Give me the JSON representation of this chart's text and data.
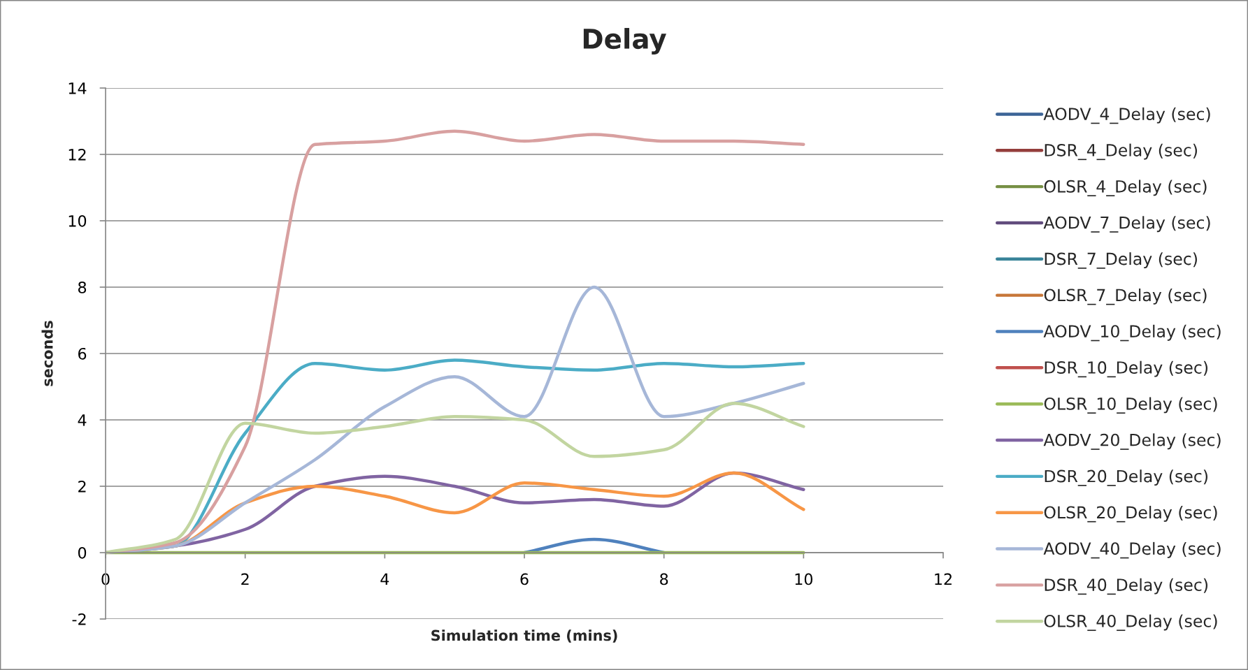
{
  "chart_data": {
    "type": "line",
    "title": "Delay",
    "xlabel": "Simulation time (mins)",
    "ylabel": "seconds",
    "x": [
      0,
      1,
      2,
      3,
      4,
      5,
      6,
      7,
      8,
      9,
      10
    ],
    "series": [
      {
        "name": "AODV_4_Delay (sec)",
        "color": "#3c6496",
        "values": [
          null,
          null,
          null,
          null,
          null,
          null,
          null,
          null,
          null,
          null,
          null
        ]
      },
      {
        "name": "DSR_4_Delay (sec)",
        "color": "#943e3c",
        "values": [
          null,
          null,
          null,
          null,
          null,
          null,
          null,
          null,
          null,
          null,
          null
        ]
      },
      {
        "name": "OLSR_4_Delay (sec)",
        "color": "#768f44",
        "values": [
          null,
          null,
          null,
          null,
          null,
          null,
          null,
          null,
          null,
          null,
          null
        ]
      },
      {
        "name": "AODV_7_Delay (sec)",
        "color": "#614c7d",
        "values": [
          null,
          null,
          null,
          null,
          null,
          null,
          null,
          null,
          null,
          null,
          null
        ]
      },
      {
        "name": "DSR_7_Delay (sec)",
        "color": "#398499",
        "values": [
          null,
          null,
          null,
          null,
          null,
          null,
          null,
          null,
          null,
          null,
          null
        ]
      },
      {
        "name": "OLSR_7_Delay (sec)",
        "color": "#c77638",
        "values": [
          null,
          null,
          null,
          null,
          null,
          null,
          null,
          null,
          null,
          null,
          null
        ]
      },
      {
        "name": "AODV_10_Delay (sec)",
        "color": "#4f81bd",
        "values": [
          null,
          null,
          null,
          null,
          null,
          null,
          0,
          0.4,
          0,
          null,
          null
        ]
      },
      {
        "name": "DSR_10_Delay (sec)",
        "color": "#c0504d",
        "values": [
          null,
          null,
          null,
          null,
          null,
          null,
          null,
          null,
          null,
          null,
          null
        ]
      },
      {
        "name": "OLSR_10_Delay (sec)",
        "color": "#9bbb59",
        "values": [
          0,
          0,
          0,
          0,
          0,
          0,
          0,
          0,
          0,
          0,
          0
        ]
      },
      {
        "name": "AODV_20_Delay (sec)",
        "color": "#8064a2",
        "values": [
          0,
          0.2,
          0.7,
          2.0,
          2.3,
          2.0,
          1.5,
          1.6,
          1.4,
          2.4,
          1.9
        ]
      },
      {
        "name": "DSR_20_Delay (sec)",
        "color": "#4bacc6",
        "values": [
          0,
          0.2,
          3.6,
          5.7,
          5.5,
          5.8,
          5.6,
          5.5,
          5.7,
          5.6,
          5.7
        ]
      },
      {
        "name": "OLSR_20_Delay (sec)",
        "color": "#f79646",
        "values": [
          0,
          0.2,
          1.5,
          2.0,
          1.7,
          1.2,
          2.1,
          1.9,
          1.7,
          2.4,
          1.3
        ]
      },
      {
        "name": "AODV_40_Delay (sec)",
        "color": "#a6b7d8",
        "values": [
          0,
          0.2,
          1.5,
          2.8,
          4.4,
          5.3,
          4.1,
          8.0,
          4.1,
          4.5,
          5.1
        ]
      },
      {
        "name": "DSR_40_Delay (sec)",
        "color": "#d8a0a0",
        "values": [
          0,
          0.3,
          3.2,
          12.3,
          12.4,
          12.7,
          12.4,
          12.6,
          12.4,
          12.4,
          12.3
        ]
      },
      {
        "name": "OLSR_40_Delay (sec)",
        "color": "#c2d5a0",
        "values": [
          0,
          0.4,
          3.9,
          3.6,
          3.8,
          4.1,
          4.0,
          2.9,
          3.1,
          4.5,
          3.8
        ]
      }
    ],
    "xlim": [
      0,
      12
    ],
    "xticks": [
      0,
      2,
      4,
      6,
      8,
      10,
      12
    ],
    "ylim": [
      -2,
      14
    ],
    "yticks": [
      -2,
      0,
      2,
      4,
      6,
      8,
      10,
      12,
      14
    ],
    "grid": "y",
    "legend": "right"
  }
}
